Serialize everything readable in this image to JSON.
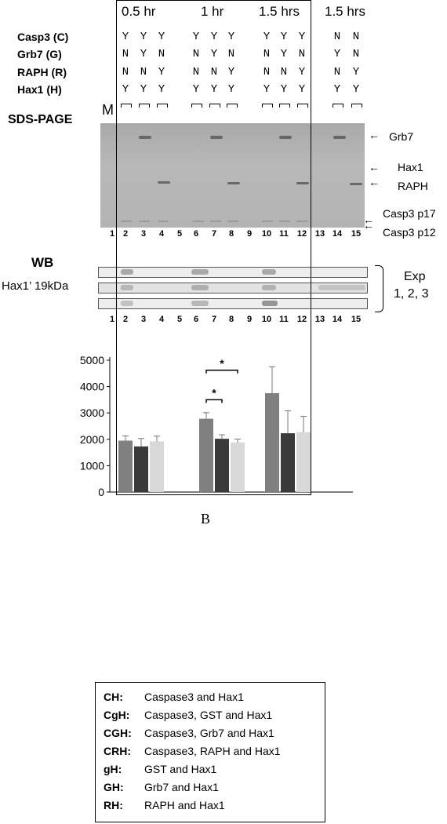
{
  "headers": [
    "0.5 hr",
    "1 hr",
    "1.5 hrs",
    "1.5 hrs"
  ],
  "row_labels": [
    "Casp3 (C)",
    "Grb7 (G)",
    "RAPH (R)",
    "Hax1 (H)"
  ],
  "lanes": [
    {
      "n": "2",
      "C": "Y",
      "G": "N",
      "R": "N",
      "H": "Y"
    },
    {
      "n": "3",
      "C": "Y",
      "G": "Y",
      "R": "N",
      "H": "Y"
    },
    {
      "n": "4",
      "C": "Y",
      "G": "N",
      "R": "Y",
      "H": "Y"
    },
    {
      "n": "6",
      "C": "Y",
      "G": "N",
      "R": "N",
      "H": "Y"
    },
    {
      "n": "7",
      "C": "Y",
      "G": "Y",
      "R": "N",
      "H": "Y"
    },
    {
      "n": "8",
      "C": "Y",
      "G": "N",
      "R": "Y",
      "H": "Y"
    },
    {
      "n": "10",
      "C": "Y",
      "G": "N",
      "R": "N",
      "H": "Y"
    },
    {
      "n": "11",
      "C": "Y",
      "G": "Y",
      "R": "N",
      "H": "Y"
    },
    {
      "n": "12",
      "C": "Y",
      "G": "N",
      "R": "Y",
      "H": "Y"
    },
    {
      "n": "14",
      "C": "N",
      "G": "Y",
      "R": "N",
      "H": "Y"
    },
    {
      "n": "15",
      "C": "N",
      "G": "N",
      "R": "Y",
      "H": "Y"
    }
  ],
  "marker_label": "M",
  "sds_title": "SDS-PAGE",
  "band_labels": {
    "grb7": "Grb7",
    "hax1": "Hax1",
    "raph": "RAPH",
    "p17": "Casp3 p17",
    "p12": "Casp3 p12"
  },
  "lane_numbers": [
    "1",
    "2",
    "3",
    "4",
    "5",
    "6",
    "7",
    "8",
    "9",
    "10",
    "11",
    "12",
    "13",
    "14",
    "15"
  ],
  "wb_title": "WB",
  "wb_sub": "Hax1’ 19kDa",
  "exp_label": "Exp",
  "exp_nums": "1, 2, 3",
  "chart_data": {
    "type": "bar",
    "categories": [
      "0.5 hr",
      "1 hr",
      "1.5 hrs"
    ],
    "series": [
      {
        "values": [
          1950,
          2780,
          3750
        ],
        "errors": [
          180,
          230,
          1000
        ],
        "color": "#808080"
      },
      {
        "values": [
          1730,
          2020,
          2230
        ],
        "errors": [
          300,
          150,
          850
        ],
        "color": "#3a3a3a"
      },
      {
        "values": [
          1920,
          1880,
          2270
        ],
        "errors": [
          200,
          130,
          600
        ],
        "color": "#d8d8d8"
      }
    ],
    "ylim": [
      0,
      5000
    ],
    "yticks": [
      "0",
      "1000",
      "2000",
      "3000",
      "4000",
      "5000"
    ],
    "significance": "*"
  },
  "panel_letter": "B",
  "legend": [
    {
      "key": "CH:",
      "desc": "Caspase3 and Hax1"
    },
    {
      "key": "CgH:",
      "desc": "Caspase3, GST and Hax1"
    },
    {
      "key": "CGH:",
      "desc": "Caspase3, Grb7 and Hax1"
    },
    {
      "key": "CRH:",
      "desc": "Caspase3, RAPH and Hax1"
    },
    {
      "key": "gH:",
      "desc": "GST and Hax1"
    },
    {
      "key": "GH:",
      "desc": "Grb7 and Hax1"
    },
    {
      "key": "RH:",
      "desc": "RAPH and Hax1"
    }
  ]
}
